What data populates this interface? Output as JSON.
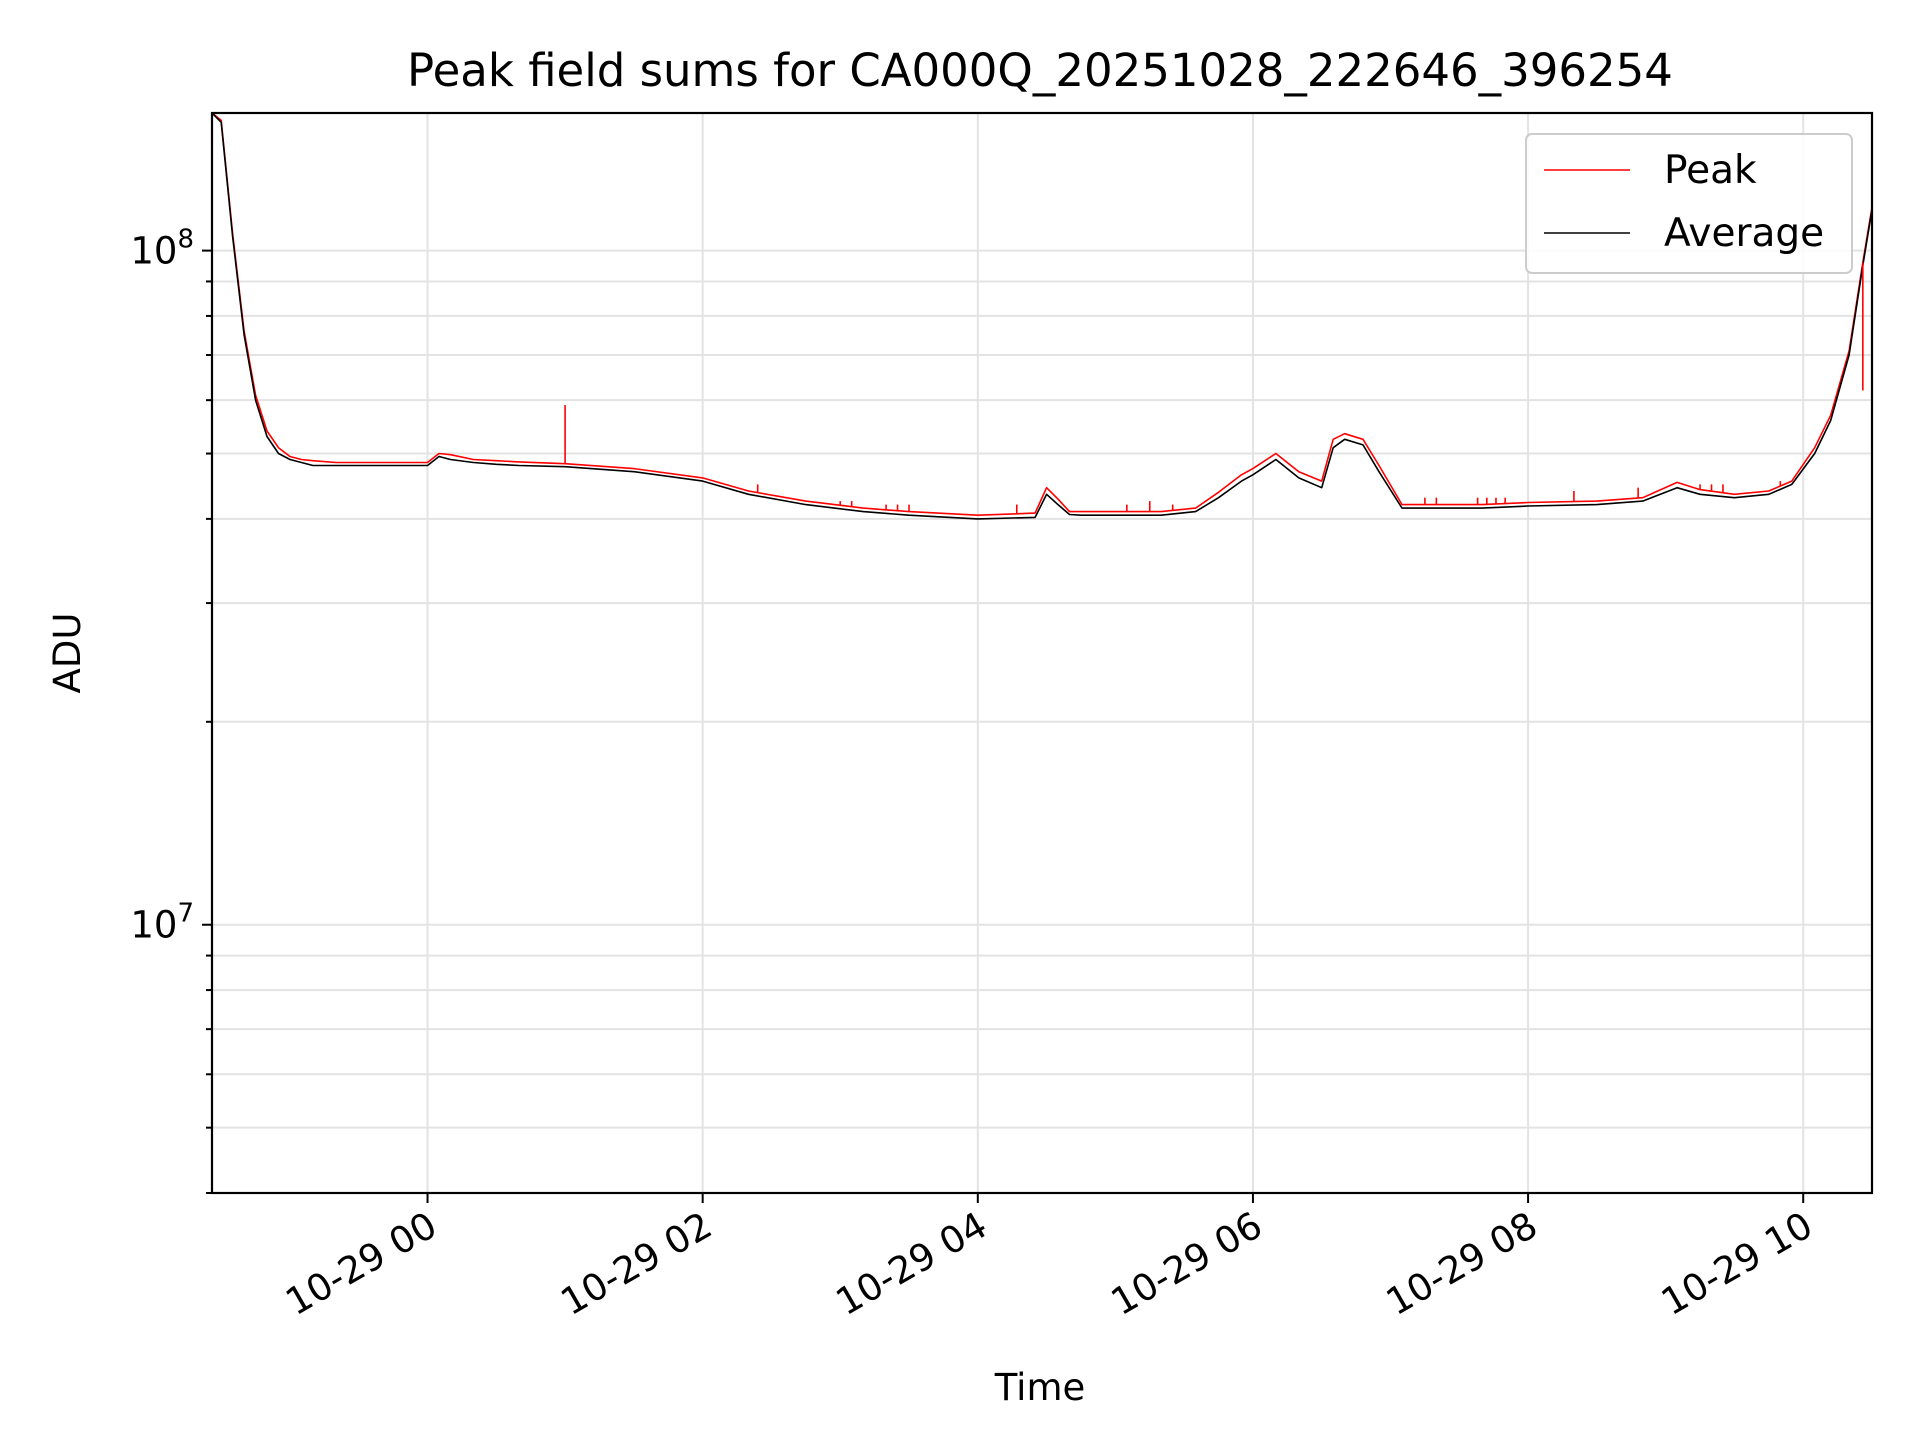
{
  "chart_data": {
    "type": "line",
    "title": "Peak field sums for CA000Q_20251028_222646_396254",
    "xlabel": "Time",
    "ylabel": "ADU",
    "y_scale": "log",
    "xlim": [
      "2025-10-28T22:26",
      "2025-10-29T10:30"
    ],
    "ylim": [
      4000000,
      160000000
    ],
    "grid": true,
    "legend_position": "top-right",
    "x_ticks": [
      "10-29 00",
      "10-29 02",
      "10-29 04",
      "10-29 06",
      "10-29 08",
      "10-29 10"
    ],
    "x_tick_times": [
      "2025-10-29T00:00",
      "2025-10-29T02:00",
      "2025-10-29T04:00",
      "2025-10-29T06:00",
      "2025-10-29T08:00",
      "2025-10-29T10:00"
    ],
    "y_ticks": [
      {
        "base": "10",
        "exp": "7",
        "value": 10000000
      },
      {
        "base": "10",
        "exp": "8",
        "value": 100000000
      }
    ],
    "y_minor_ticks": [
      4000000,
      5000000,
      6000000,
      7000000,
      8000000,
      9000000,
      20000000,
      30000000,
      40000000,
      50000000,
      60000000,
      70000000,
      80000000,
      90000000
    ],
    "colors": {
      "Peak": "#ff0000",
      "Average": "#000000"
    },
    "series": [
      {
        "name": "Average",
        "x": [
          "2025-10-28T22:26",
          "2025-10-28T22:30",
          "2025-10-28T22:35",
          "2025-10-28T22:40",
          "2025-10-28T22:45",
          "2025-10-28T22:50",
          "2025-10-28T22:55",
          "2025-10-28T23:00",
          "2025-10-28T23:05",
          "2025-10-28T23:10",
          "2025-10-28T23:20",
          "2025-10-28T23:35",
          "2025-10-29T00:00",
          "2025-10-29T00:05",
          "2025-10-29T00:10",
          "2025-10-29T00:20",
          "2025-10-29T00:30",
          "2025-10-29T00:40",
          "2025-10-29T01:00",
          "2025-10-29T01:30",
          "2025-10-29T02:00",
          "2025-10-29T02:20",
          "2025-10-29T02:45",
          "2025-10-29T03:10",
          "2025-10-29T03:30",
          "2025-10-29T04:00",
          "2025-10-29T04:25",
          "2025-10-29T04:30",
          "2025-10-29T04:35",
          "2025-10-29T04:40",
          "2025-10-29T04:45",
          "2025-10-29T05:00",
          "2025-10-29T05:20",
          "2025-10-29T05:35",
          "2025-10-29T05:45",
          "2025-10-29T05:55",
          "2025-10-29T06:00",
          "2025-10-29T06:10",
          "2025-10-29T06:20",
          "2025-10-29T06:30",
          "2025-10-29T06:35",
          "2025-10-29T06:40",
          "2025-10-29T06:48",
          "2025-10-29T06:55",
          "2025-10-29T07:05",
          "2025-10-29T07:20",
          "2025-10-29T07:40",
          "2025-10-29T08:00",
          "2025-10-29T08:30",
          "2025-10-29T08:50",
          "2025-10-29T09:05",
          "2025-10-29T09:15",
          "2025-10-29T09:30",
          "2025-10-29T09:45",
          "2025-10-29T09:55",
          "2025-10-29T10:05",
          "2025-10-29T10:12",
          "2025-10-29T10:20",
          "2025-10-29T10:26",
          "2025-10-29T10:30"
        ],
        "y": [
          160000000,
          155000000,
          105000000,
          75000000,
          60000000,
          53000000,
          50000000,
          49000000,
          48500000,
          48000000,
          48000000,
          48000000,
          48000000,
          49500000,
          49000000,
          48500000,
          48200000,
          48000000,
          47800000,
          47000000,
          45500000,
          43500000,
          42000000,
          41000000,
          40500000,
          40000000,
          40200000,
          43500000,
          42000000,
          40600000,
          40500000,
          40500000,
          40500000,
          41000000,
          43000000,
          45500000,
          46500000,
          49000000,
          46000000,
          44500000,
          51000000,
          52500000,
          51500000,
          47000000,
          41500000,
          41500000,
          41500000,
          41800000,
          42000000,
          42500000,
          44500000,
          43500000,
          43000000,
          43500000,
          45000000,
          50000000,
          56000000,
          70000000,
          95000000,
          115000000
        ]
      },
      {
        "name": "Peak",
        "x": [
          "2025-10-28T22:26",
          "2025-10-28T22:30",
          "2025-10-28T22:35",
          "2025-10-28T22:40",
          "2025-10-28T22:45",
          "2025-10-28T22:50",
          "2025-10-28T22:55",
          "2025-10-28T23:00",
          "2025-10-28T23:05",
          "2025-10-28T23:10",
          "2025-10-28T23:20",
          "2025-10-28T23:35",
          "2025-10-29T00:00",
          "2025-10-29T00:05",
          "2025-10-29T00:10",
          "2025-10-29T00:20",
          "2025-10-29T00:30",
          "2025-10-29T00:40",
          "2025-10-29T01:00",
          "2025-10-29T01:30",
          "2025-10-29T02:00",
          "2025-10-29T02:20",
          "2025-10-29T02:45",
          "2025-10-29T03:10",
          "2025-10-29T03:30",
          "2025-10-29T04:00",
          "2025-10-29T04:25",
          "2025-10-29T04:30",
          "2025-10-29T04:35",
          "2025-10-29T04:40",
          "2025-10-29T04:45",
          "2025-10-29T05:00",
          "2025-10-29T05:20",
          "2025-10-29T05:35",
          "2025-10-29T05:45",
          "2025-10-29T05:55",
          "2025-10-29T06:00",
          "2025-10-29T06:10",
          "2025-10-29T06:20",
          "2025-10-29T06:30",
          "2025-10-29T06:35",
          "2025-10-29T06:40",
          "2025-10-29T06:48",
          "2025-10-29T06:55",
          "2025-10-29T07:05",
          "2025-10-29T07:20",
          "2025-10-29T07:40",
          "2025-10-29T08:00",
          "2025-10-29T08:30",
          "2025-10-29T08:50",
          "2025-10-29T09:05",
          "2025-10-29T09:15",
          "2025-10-29T09:30",
          "2025-10-29T09:45",
          "2025-10-29T09:55",
          "2025-10-29T10:05",
          "2025-10-29T10:12",
          "2025-10-29T10:20",
          "2025-10-29T10:26",
          "2025-10-29T10:30"
        ],
        "y": [
          160000000,
          156000000,
          106000000,
          76000000,
          61000000,
          54000000,
          51000000,
          49500000,
          49000000,
          48800000,
          48500000,
          48500000,
          48500000,
          50000000,
          49800000,
          49000000,
          48800000,
          48600000,
          48300000,
          47500000,
          46000000,
          44000000,
          42500000,
          41500000,
          41000000,
          40500000,
          40800000,
          44500000,
          42800000,
          41000000,
          41000000,
          41000000,
          41000000,
          41500000,
          43800000,
          46500000,
          47500000,
          50000000,
          47000000,
          45500000,
          52500000,
          53500000,
          52500000,
          48000000,
          42000000,
          42000000,
          42000000,
          42300000,
          42500000,
          43000000,
          45300000,
          44200000,
          43500000,
          44000000,
          45500000,
          51000000,
          57000000,
          71000000,
          96000000,
          116000000
        ]
      }
    ],
    "peak_spikes": [
      {
        "x": "2025-10-29T01:00",
        "y": 59000000
      },
      {
        "x": "2025-10-29T02:24",
        "y": 45000000
      },
      {
        "x": "2025-10-29T03:00",
        "y": 42500000
      },
      {
        "x": "2025-10-29T03:05",
        "y": 42500000
      },
      {
        "x": "2025-10-29T03:20",
        "y": 42000000
      },
      {
        "x": "2025-10-29T03:25",
        "y": 42000000
      },
      {
        "x": "2025-10-29T03:30",
        "y": 42000000
      },
      {
        "x": "2025-10-29T04:17",
        "y": 42000000
      },
      {
        "x": "2025-10-29T05:05",
        "y": 42000000
      },
      {
        "x": "2025-10-29T05:15",
        "y": 42500000
      },
      {
        "x": "2025-10-29T05:25",
        "y": 42000000
      },
      {
        "x": "2025-10-29T07:15",
        "y": 43000000
      },
      {
        "x": "2025-10-29T07:20",
        "y": 43000000
      },
      {
        "x": "2025-10-29T07:38",
        "y": 43000000
      },
      {
        "x": "2025-10-29T07:42",
        "y": 43000000
      },
      {
        "x": "2025-10-29T07:46",
        "y": 43000000
      },
      {
        "x": "2025-10-29T07:50",
        "y": 43000000
      },
      {
        "x": "2025-10-29T08:20",
        "y": 44000000
      },
      {
        "x": "2025-10-29T08:48",
        "y": 44500000
      },
      {
        "x": "2025-10-29T09:15",
        "y": 45000000
      },
      {
        "x": "2025-10-29T09:20",
        "y": 45000000
      },
      {
        "x": "2025-10-29T09:25",
        "y": 45000000
      },
      {
        "x": "2025-10-29T09:50",
        "y": 45500000
      },
      {
        "x": "2025-10-29T10:26",
        "y": 62000000
      }
    ]
  }
}
